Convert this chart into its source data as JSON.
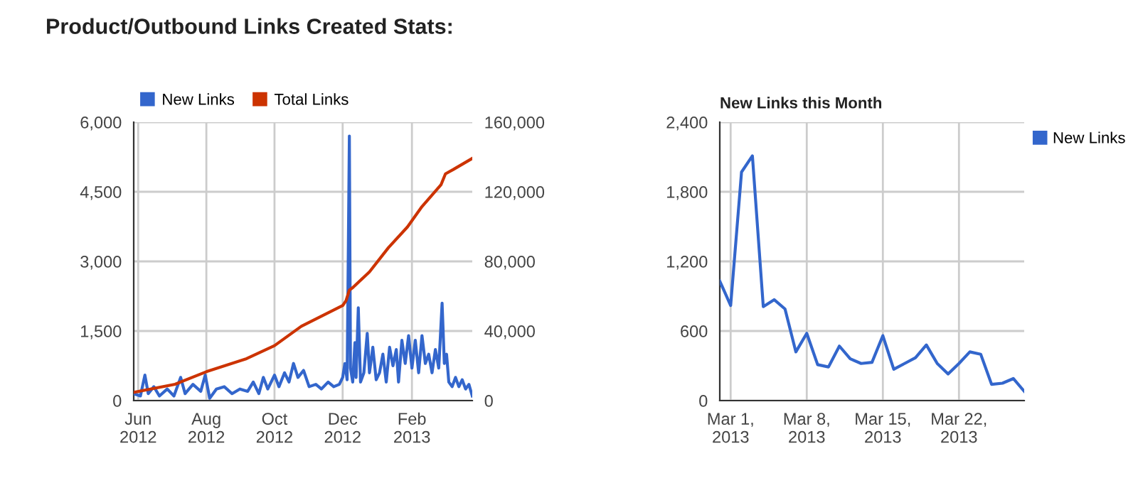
{
  "chart_data": [
    {
      "type": "line",
      "title": "Product/Outbound Links Created Stats:",
      "legend": "top left",
      "grid": true,
      "marker": "none",
      "line_style": "solid",
      "xlim": [
        "2012-05-28",
        "2013-03-27"
      ],
      "xticks": [
        {
          "value": "2012-06-01",
          "label": "Jun\n2012"
        },
        {
          "value": "2012-08-01",
          "label": "Aug\n2012"
        },
        {
          "value": "2012-10-01",
          "label": "Oct\n2012"
        },
        {
          "value": "2012-12-01",
          "label": "Dec\n2012"
        },
        {
          "value": "2013-02-01",
          "label": "Feb\n2013"
        }
      ],
      "ylim": [
        0,
        6000
      ],
      "yticks": [
        {
          "value": 0,
          "label": "0"
        },
        {
          "value": 1500,
          "label": "1,500"
        },
        {
          "value": 3000,
          "label": "3,000"
        },
        {
          "value": 4500,
          "label": "4,500"
        },
        {
          "value": 6000,
          "label": "6,000"
        }
      ],
      "y2lim": [
        0,
        160000
      ],
      "y2ticks": [
        {
          "value": 0,
          "label": "0"
        },
        {
          "value": 40000,
          "label": "40,000"
        },
        {
          "value": 80000,
          "label": "80,000"
        },
        {
          "value": 120000,
          "label": "120,000"
        },
        {
          "value": 160000,
          "label": "160,000"
        }
      ],
      "series": [
        {
          "name": "New Links",
          "color": "#3366cc",
          "x": [
            "2012-05-28",
            "2012-06-03",
            "2012-06-07",
            "2012-06-10",
            "2012-06-15",
            "2012-06-20",
            "2012-06-27",
            "2012-07-03",
            "2012-07-09",
            "2012-07-13",
            "2012-07-20",
            "2012-07-27",
            "2012-07-31",
            "2012-08-04",
            "2012-08-10",
            "2012-08-17",
            "2012-08-24",
            "2012-08-31",
            "2012-09-07",
            "2012-09-12",
            "2012-09-17",
            "2012-09-21",
            "2012-09-25",
            "2012-10-01",
            "2012-10-05",
            "2012-10-10",
            "2012-10-14",
            "2012-10-18",
            "2012-10-22",
            "2012-10-27",
            "2012-11-01",
            "2012-11-07",
            "2012-11-12",
            "2012-11-18",
            "2012-11-23",
            "2012-11-28",
            "2012-12-01",
            "2012-12-03",
            "2012-12-05",
            "2012-12-07",
            "2012-12-08",
            "2012-12-10",
            "2012-12-12",
            "2012-12-13",
            "2012-12-15",
            "2012-12-17",
            "2012-12-20",
            "2012-12-23",
            "2012-12-25",
            "2012-12-28",
            "2012-12-31",
            "2013-01-03",
            "2013-01-06",
            "2013-01-09",
            "2013-01-12",
            "2013-01-15",
            "2013-01-18",
            "2013-01-20",
            "2013-01-23",
            "2013-01-26",
            "2013-01-29",
            "2013-02-01",
            "2013-02-04",
            "2013-02-07",
            "2013-02-10",
            "2013-02-13",
            "2013-02-16",
            "2013-02-19",
            "2013-02-22",
            "2013-02-25",
            "2013-02-28",
            "2013-03-02",
            "2013-03-04",
            "2013-03-06",
            "2013-03-09",
            "2013-03-12",
            "2013-03-15",
            "2013-03-18",
            "2013-03-21",
            "2013-03-24",
            "2013-03-27"
          ],
          "values": [
            150,
            100,
            550,
            150,
            300,
            100,
            250,
            100,
            500,
            150,
            350,
            200,
            550,
            50,
            250,
            300,
            150,
            250,
            200,
            400,
            150,
            500,
            250,
            550,
            300,
            600,
            400,
            800,
            500,
            650,
            300,
            350,
            250,
            400,
            300,
            350,
            500,
            800,
            450,
            5700,
            700,
            400,
            1250,
            500,
            2000,
            400,
            600,
            1450,
            600,
            1150,
            450,
            600,
            1000,
            400,
            1150,
            750,
            1100,
            400,
            1300,
            800,
            1400,
            700,
            1300,
            600,
            1400,
            800,
            1000,
            600,
            1100,
            700,
            2100,
            800,
            1000,
            400,
            300,
            500,
            300,
            450,
            250,
            350,
            100
          ]
        },
        {
          "name": "Total Links",
          "color": "#cc3300",
          "axis": "y2",
          "x": [
            "2012-05-28",
            "2012-07-04",
            "2012-08-01",
            "2012-09-06",
            "2012-10-01",
            "2012-10-25",
            "2012-12-01",
            "2012-12-04",
            "2012-12-07",
            "2012-12-10",
            "2012-12-25",
            "2013-01-11",
            "2013-01-28",
            "2013-02-10",
            "2013-02-27",
            "2013-03-03",
            "2013-03-10",
            "2013-03-27"
          ],
          "values": [
            4700,
            9400,
            16600,
            24100,
            31600,
            42700,
            54600,
            57400,
            63500,
            64900,
            74000,
            87900,
            99800,
            111500,
            124000,
            130300,
            132800,
            139200
          ]
        }
      ]
    },
    {
      "type": "line",
      "title": "New Links this Month",
      "legend": "right",
      "grid": true,
      "marker": "none",
      "line_style": "solid",
      "xlim": [
        "2013-02-28",
        "2013-03-28"
      ],
      "xticks": [
        {
          "value": "2013-03-01",
          "label": "Mar 1,\n2013"
        },
        {
          "value": "2013-03-08",
          "label": "Mar 8,\n2013"
        },
        {
          "value": "2013-03-15",
          "label": "Mar 15,\n2013"
        },
        {
          "value": "2013-03-22",
          "label": "Mar 22,\n2013"
        }
      ],
      "ylim": [
        0,
        2400
      ],
      "yticks": [
        {
          "value": 0,
          "label": "0"
        },
        {
          "value": 600,
          "label": "600"
        },
        {
          "value": 1200,
          "label": "1,200"
        },
        {
          "value": 1800,
          "label": "1,800"
        },
        {
          "value": 2400,
          "label": "2,400"
        }
      ],
      "series": [
        {
          "name": "New Links",
          "color": "#3366cc",
          "x": [
            "2013-02-28",
            "2013-03-01",
            "2013-03-02",
            "2013-03-03",
            "2013-03-04",
            "2013-03-05",
            "2013-03-06",
            "2013-03-07",
            "2013-03-08",
            "2013-03-09",
            "2013-03-10",
            "2013-03-11",
            "2013-03-12",
            "2013-03-13",
            "2013-03-14",
            "2013-03-15",
            "2013-03-16",
            "2013-03-17",
            "2013-03-18",
            "2013-03-19",
            "2013-03-20",
            "2013-03-21",
            "2013-03-22",
            "2013-03-23",
            "2013-03-24",
            "2013-03-25",
            "2013-03-26",
            "2013-03-27",
            "2013-03-28"
          ],
          "values": [
            1030,
            820,
            1970,
            2110,
            810,
            870,
            790,
            420,
            580,
            310,
            290,
            470,
            360,
            320,
            330,
            560,
            270,
            320,
            370,
            480,
            320,
            230,
            320,
            420,
            400,
            140,
            150,
            190,
            80
          ]
        }
      ]
    }
  ]
}
